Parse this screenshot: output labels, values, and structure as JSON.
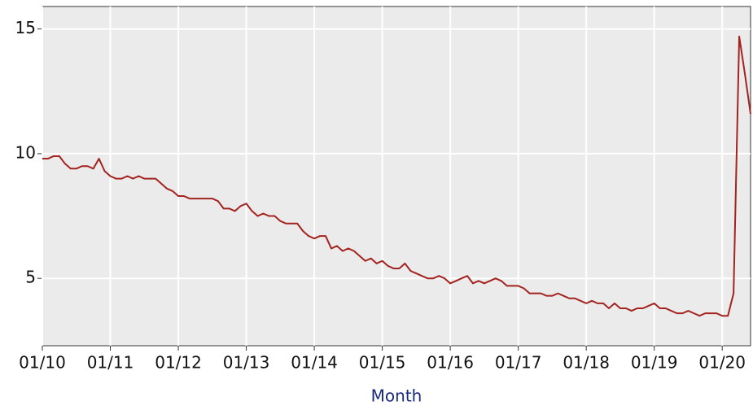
{
  "chart_data": {
    "type": "line",
    "xlabel": "Month",
    "categories": [
      "01/10",
      null,
      null,
      null,
      null,
      null,
      null,
      null,
      null,
      null,
      null,
      null,
      "01/11",
      null,
      null,
      null,
      null,
      null,
      null,
      null,
      null,
      null,
      null,
      null,
      "01/12",
      null,
      null,
      null,
      null,
      null,
      null,
      null,
      null,
      null,
      null,
      null,
      "01/13",
      null,
      null,
      null,
      null,
      null,
      null,
      null,
      null,
      null,
      null,
      null,
      "01/14",
      null,
      null,
      null,
      null,
      null,
      null,
      null,
      null,
      null,
      null,
      null,
      "01/15",
      null,
      null,
      null,
      null,
      null,
      null,
      null,
      null,
      null,
      null,
      null,
      "01/16",
      null,
      null,
      null,
      null,
      null,
      null,
      null,
      null,
      null,
      null,
      null,
      "01/17",
      null,
      null,
      null,
      null,
      null,
      null,
      null,
      null,
      null,
      null,
      null,
      "01/18",
      null,
      null,
      null,
      null,
      null,
      null,
      null,
      null,
      null,
      null,
      null,
      "01/19",
      null,
      null,
      null,
      null,
      null,
      null,
      null,
      null,
      null,
      null,
      null,
      "01/20",
      null,
      null,
      null,
      null,
      null
    ],
    "values": [
      9.8,
      9.8,
      9.9,
      9.9,
      9.6,
      9.4,
      9.4,
      9.5,
      9.5,
      9.4,
      9.8,
      9.3,
      9.1,
      9.0,
      9.0,
      9.1,
      9.0,
      9.1,
      9.0,
      9.0,
      9.0,
      8.8,
      8.6,
      8.5,
      8.3,
      8.3,
      8.2,
      8.2,
      8.2,
      8.2,
      8.2,
      8.1,
      7.8,
      7.8,
      7.7,
      7.9,
      8.0,
      7.7,
      7.5,
      7.6,
      7.5,
      7.5,
      7.3,
      7.2,
      7.2,
      7.2,
      6.9,
      6.7,
      6.6,
      6.7,
      6.7,
      6.2,
      6.3,
      6.1,
      6.2,
      6.1,
      5.9,
      5.7,
      5.8,
      5.6,
      5.7,
      5.5,
      5.4,
      5.4,
      5.6,
      5.3,
      5.2,
      5.1,
      5.0,
      5.0,
      5.1,
      5.0,
      4.8,
      4.9,
      5.0,
      5.1,
      4.8,
      4.9,
      4.8,
      4.9,
      5.0,
      4.9,
      4.7,
      4.7,
      4.7,
      4.6,
      4.4,
      4.4,
      4.4,
      4.3,
      4.3,
      4.4,
      4.3,
      4.2,
      4.2,
      4.1,
      4.0,
      4.1,
      4.0,
      4.0,
      3.8,
      4.0,
      3.8,
      3.8,
      3.7,
      3.8,
      3.8,
      3.9,
      4.0,
      3.8,
      3.8,
      3.7,
      3.6,
      3.6,
      3.7,
      3.6,
      3.5,
      3.6,
      3.6,
      3.6,
      3.5,
      3.5,
      4.4,
      14.7,
      13.2,
      11.6
    ],
    "color": "#a3231f",
    "ylim": [
      2.3,
      15.9
    ],
    "yticks": [
      5,
      10,
      15
    ],
    "grid": true
  }
}
